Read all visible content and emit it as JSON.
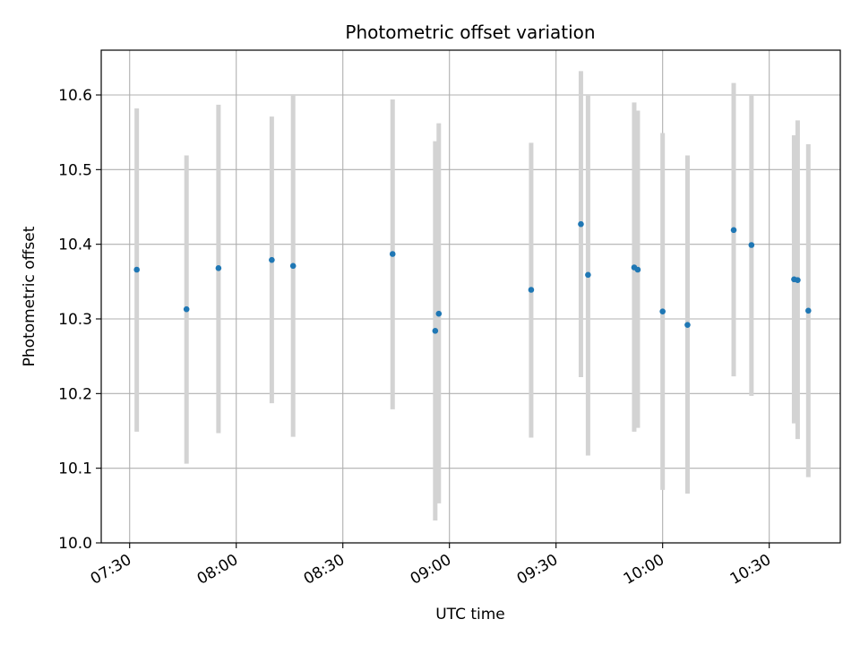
{
  "chart_data": {
    "type": "scatter",
    "title": "Photometric offset variation",
    "xlabel": "UTC time",
    "ylabel": "Photometric offset",
    "xlim": [
      "07:22",
      "10:50"
    ],
    "ylim": [
      10.0,
      10.66
    ],
    "x_ticks": [
      "07:30",
      "08:00",
      "08:30",
      "09:00",
      "09:30",
      "10:00",
      "10:30"
    ],
    "y_ticks": [
      "10.0",
      "10.1",
      "10.2",
      "10.3",
      "10.4",
      "10.5",
      "10.6"
    ],
    "grid": true,
    "errorbar_color": "#d3d3d3",
    "marker_color": "#1f77b4",
    "points": [
      {
        "time": "07:32",
        "y": 10.366,
        "low": 10.149,
        "high": 10.582
      },
      {
        "time": "07:46",
        "y": 10.313,
        "low": 10.106,
        "high": 10.519
      },
      {
        "time": "07:55",
        "y": 10.368,
        "low": 10.147,
        "high": 10.587
      },
      {
        "time": "08:10",
        "y": 10.379,
        "low": 10.187,
        "high": 10.571
      },
      {
        "time": "08:16",
        "y": 10.371,
        "low": 10.142,
        "high": 10.6
      },
      {
        "time": "08:44",
        "y": 10.387,
        "low": 10.179,
        "high": 10.594
      },
      {
        "time": "08:56",
        "y": 10.284,
        "low": 10.03,
        "high": 10.538
      },
      {
        "time": "08:57",
        "y": 10.307,
        "low": 10.053,
        "high": 10.562
      },
      {
        "time": "09:23",
        "y": 10.339,
        "low": 10.141,
        "high": 10.536
      },
      {
        "time": "09:37",
        "y": 10.427,
        "low": 10.222,
        "high": 10.632
      },
      {
        "time": "09:39",
        "y": 10.359,
        "low": 10.117,
        "high": 10.601
      },
      {
        "time": "09:52",
        "y": 10.369,
        "low": 10.149,
        "high": 10.59
      },
      {
        "time": "09:53",
        "y": 10.366,
        "low": 10.154,
        "high": 10.579
      },
      {
        "time": "10:00",
        "y": 10.31,
        "low": 10.071,
        "high": 10.549
      },
      {
        "time": "10:07",
        "y": 10.292,
        "low": 10.066,
        "high": 10.519
      },
      {
        "time": "10:20",
        "y": 10.419,
        "low": 10.223,
        "high": 10.616
      },
      {
        "time": "10:25",
        "y": 10.399,
        "low": 10.197,
        "high": 10.6
      },
      {
        "time": "10:37",
        "y": 10.353,
        "low": 10.16,
        "high": 10.546
      },
      {
        "time": "10:38",
        "y": 10.352,
        "low": 10.139,
        "high": 10.566
      },
      {
        "time": "10:41",
        "y": 10.311,
        "low": 10.088,
        "high": 10.534
      }
    ]
  }
}
